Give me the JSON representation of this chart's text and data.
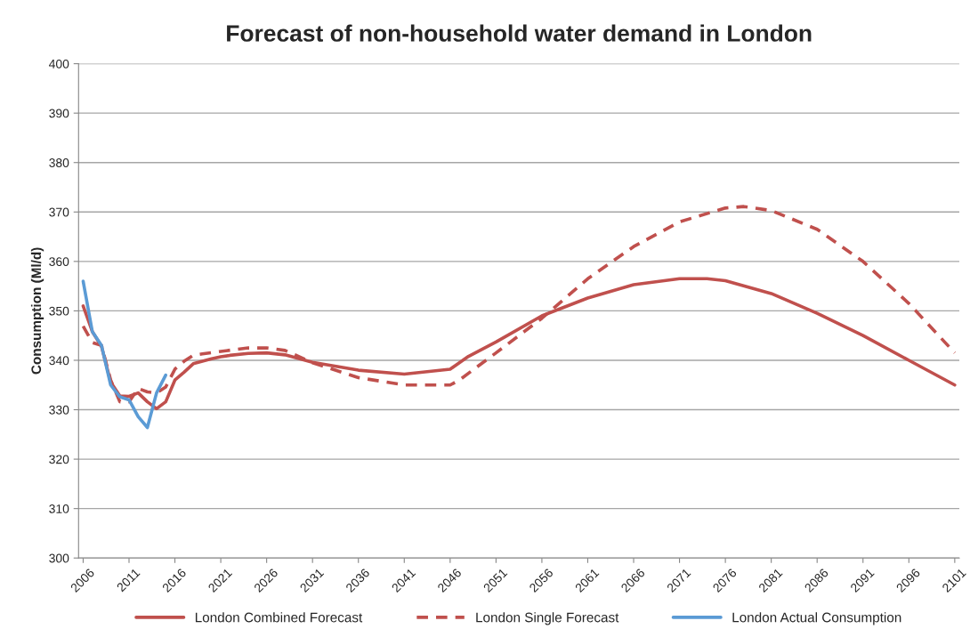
{
  "chart_data": {
    "type": "line",
    "title": "Forecast of non-household water demand in London",
    "ylabel": "Consumption (Ml/d)",
    "xlim": [
      2005.5,
      2101.5
    ],
    "xticks": [
      2006,
      2011,
      2016,
      2021,
      2026,
      2031,
      2036,
      2041,
      2046,
      2051,
      2056,
      2061,
      2066,
      2071,
      2076,
      2081,
      2086,
      2091,
      2096,
      2101
    ],
    "ylim": [
      300,
      400
    ],
    "yticks": [
      300,
      310,
      320,
      330,
      340,
      350,
      360,
      370,
      380,
      390,
      400
    ],
    "grid": "y",
    "legend": "bottom",
    "marker": "none",
    "series": [
      {
        "name": "London Combined Forecast",
        "color": "#c0504d",
        "line_style": "solid",
        "x": [
          2006,
          2007,
          2008,
          2009,
          2010,
          2011,
          2012,
          2013,
          2014,
          2015,
          2016,
          2017,
          2018,
          2019,
          2020,
          2021,
          2022,
          2024,
          2026,
          2028,
          2031,
          2036,
          2041,
          2046,
          2048,
          2051,
          2056,
          2061,
          2066,
          2071,
          2074,
          2076,
          2081,
          2086,
          2091,
          2096,
          2101
        ],
        "values": [
          351,
          345.8,
          342.8,
          335.6,
          332.8,
          332.7,
          333.4,
          331.6,
          330.2,
          331.6,
          336,
          337.6,
          339.3,
          339.8,
          340.3,
          340.7,
          341,
          341.4,
          341.5,
          341.1,
          339.6,
          338,
          337.2,
          338.2,
          340.8,
          343.7,
          349,
          352.6,
          355.3,
          356.5,
          356.5,
          356.1,
          353.5,
          349.5,
          345,
          340,
          335
        ]
      },
      {
        "name": "London Single Forecast",
        "color": "#c0504d",
        "line_style": "dashed",
        "x": [
          2006,
          2007,
          2008,
          2009,
          2010,
          2011,
          2012,
          2013,
          2014,
          2015,
          2016,
          2017,
          2018,
          2019,
          2021,
          2024,
          2026,
          2028,
          2031,
          2036,
          2041,
          2046,
          2047,
          2051,
          2056,
          2061,
          2066,
          2071,
          2076,
          2078,
          2081,
          2086,
          2091,
          2096,
          2101
        ],
        "values": [
          346.9,
          343.6,
          343,
          336,
          331.6,
          331.6,
          334.3,
          333.6,
          333.4,
          334.6,
          338.2,
          339.8,
          341,
          341.3,
          341.8,
          342.5,
          342.5,
          342,
          339.5,
          336.5,
          335,
          335,
          336,
          341.5,
          348.5,
          356.5,
          363,
          368,
          370.8,
          371.1,
          370.3,
          366.5,
          360,
          351.5,
          341.5
        ]
      },
      {
        "name": "London Actual Consumption",
        "color": "#5b9bd5",
        "line_style": "solid",
        "x": [
          2006,
          2007,
          2008,
          2009,
          2010,
          2011,
          2012,
          2013,
          2014,
          2015
        ],
        "values": [
          356,
          345.8,
          343,
          335,
          332.6,
          332,
          328.6,
          326.4,
          333.4,
          337
        ]
      }
    ]
  }
}
